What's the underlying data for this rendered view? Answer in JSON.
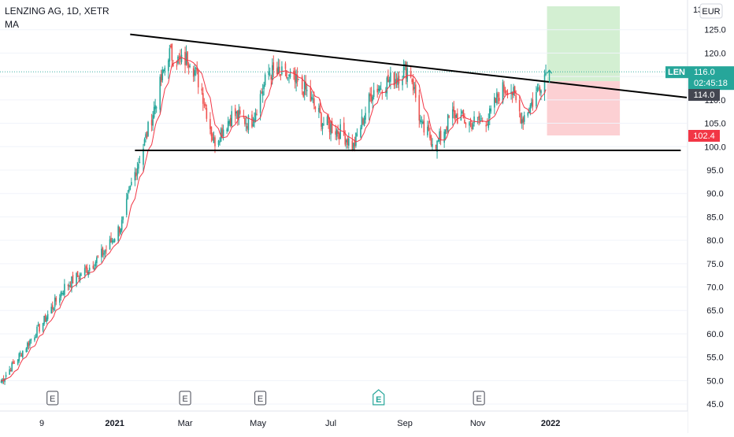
{
  "header": {
    "title": "LENZING AG, 1D, XETR",
    "indicator": "MA",
    "currency_button": "EUR"
  },
  "chart_data": {
    "type": "candlestick",
    "symbol": "LENZING AG",
    "interval": "1D",
    "exchange": "XETR",
    "currency": "EUR",
    "y_axis": {
      "range": [
        43.5,
        130
      ],
      "ticks": [
        45.0,
        50.0,
        55.0,
        60.0,
        65.0,
        70.0,
        75.0,
        80.0,
        85.0,
        90.0,
        95.0,
        100.0,
        105.0,
        110.0,
        115.0,
        120.0,
        125.0
      ]
    },
    "y_top_label_partial": "13",
    "x_axis": {
      "labels": [
        {
          "text": "9",
          "date": "2020-11-01"
        },
        {
          "text": "2021",
          "date": "2021-01-01"
        },
        {
          "text": "Mar",
          "date": "2021-03-01"
        },
        {
          "text": "May",
          "date": "2021-05-01"
        },
        {
          "text": "Jul",
          "date": "2021-07-01"
        },
        {
          "text": "Sep",
          "date": "2021-09-01"
        },
        {
          "text": "Nov",
          "date": "2021-11-01"
        },
        {
          "text": "2022",
          "date": "2022-01-01"
        }
      ]
    },
    "x_range": [
      "2020-09-27",
      "2022-04-25"
    ],
    "anchors": [
      {
        "date": "2020-09-27",
        "price": 49.5
      },
      {
        "date": "2020-10-15",
        "price": 56.0
      },
      {
        "date": "2020-11-01",
        "price": 62.0
      },
      {
        "date": "2020-11-20",
        "price": 70.0
      },
      {
        "date": "2020-12-10",
        "price": 74.0
      },
      {
        "date": "2020-12-25",
        "price": 78.0
      },
      {
        "date": "2021-01-08",
        "price": 84.0
      },
      {
        "date": "2021-01-15",
        "price": 92.0
      },
      {
        "date": "2021-01-25",
        "price": 100.0
      },
      {
        "date": "2021-02-05",
        "price": 110.0
      },
      {
        "date": "2021-02-15",
        "price": 120.0
      },
      {
        "date": "2021-02-25",
        "price": 118.0
      },
      {
        "date": "2021-03-05",
        "price": 119.0
      },
      {
        "date": "2021-03-15",
        "price": 112.0
      },
      {
        "date": "2021-03-25",
        "price": 101.0
      },
      {
        "date": "2021-04-10",
        "price": 107.0
      },
      {
        "date": "2021-04-25",
        "price": 105.0
      },
      {
        "date": "2021-05-10",
        "price": 116.0
      },
      {
        "date": "2021-05-25",
        "price": 115.0
      },
      {
        "date": "2021-06-10",
        "price": 112.0
      },
      {
        "date": "2021-06-25",
        "price": 105.0
      },
      {
        "date": "2021-07-10",
        "price": 103.0
      },
      {
        "date": "2021-07-20",
        "price": 100.0
      },
      {
        "date": "2021-08-05",
        "price": 112.0
      },
      {
        "date": "2021-08-25",
        "price": 115.0
      },
      {
        "date": "2021-09-05",
        "price": 117.0
      },
      {
        "date": "2021-09-15",
        "price": 104.0
      },
      {
        "date": "2021-09-28",
        "price": 100.5
      },
      {
        "date": "2021-10-10",
        "price": 107.0
      },
      {
        "date": "2021-10-25",
        "price": 105.0
      },
      {
        "date": "2021-11-10",
        "price": 106.0
      },
      {
        "date": "2021-11-20",
        "price": 112.0
      },
      {
        "date": "2021-11-28",
        "price": 113.0
      },
      {
        "date": "2021-12-08",
        "price": 106.0
      },
      {
        "date": "2021-12-18",
        "price": 110.0
      },
      {
        "date": "2021-12-24",
        "price": 114.0
      },
      {
        "date": "2021-12-28",
        "price": 116.0
      }
    ],
    "moving_average": {
      "name": "MA",
      "color": "#f23645",
      "length": 9
    },
    "trendlines": [
      {
        "name": "descending-resistance",
        "start": {
          "date": "2021-01-14",
          "price": 124.0
        },
        "end": {
          "date": "2022-04-25",
          "price": 110.5
        },
        "color": "#000000"
      },
      {
        "name": "horizontal-support",
        "start": {
          "date": "2021-01-18",
          "price": 99.2
        },
        "end": {
          "date": "2022-04-20",
          "price": 99.2
        },
        "color": "#000000"
      }
    ],
    "position": {
      "start_date": "2021-12-29",
      "end_date": "2022-02-28",
      "entry": 114.0,
      "target_top": 130.0,
      "stop": 102.4,
      "profit_color": "#c8ebc7",
      "loss_color": "#fcc8cb"
    },
    "last_price_line": {
      "price": 116.0,
      "color": "#26a69a"
    },
    "price_labels": [
      {
        "name": "last-price",
        "symbol": "LEN",
        "value": "116.0",
        "countdown": "02:45:18",
        "color": "#26a69a"
      },
      {
        "name": "entry-price",
        "value": "114.0",
        "color": "#434651"
      },
      {
        "name": "stop-price",
        "value": "102.4",
        "color": "#f23645"
      }
    ],
    "events": [
      {
        "date": "2020-11-10",
        "label": "E",
        "highlighted": false
      },
      {
        "date": "2021-03-01",
        "label": "E",
        "highlighted": false
      },
      {
        "date": "2021-05-03",
        "label": "E",
        "highlighted": false
      },
      {
        "date": "2021-08-10",
        "label": "E",
        "highlighted": true
      },
      {
        "date": "2021-11-02",
        "label": "E",
        "highlighted": false
      }
    ],
    "colors": {
      "up": "#26a69a",
      "down": "#ef5350",
      "grid": "#f0f3fa",
      "axis_text": "#131722"
    }
  }
}
